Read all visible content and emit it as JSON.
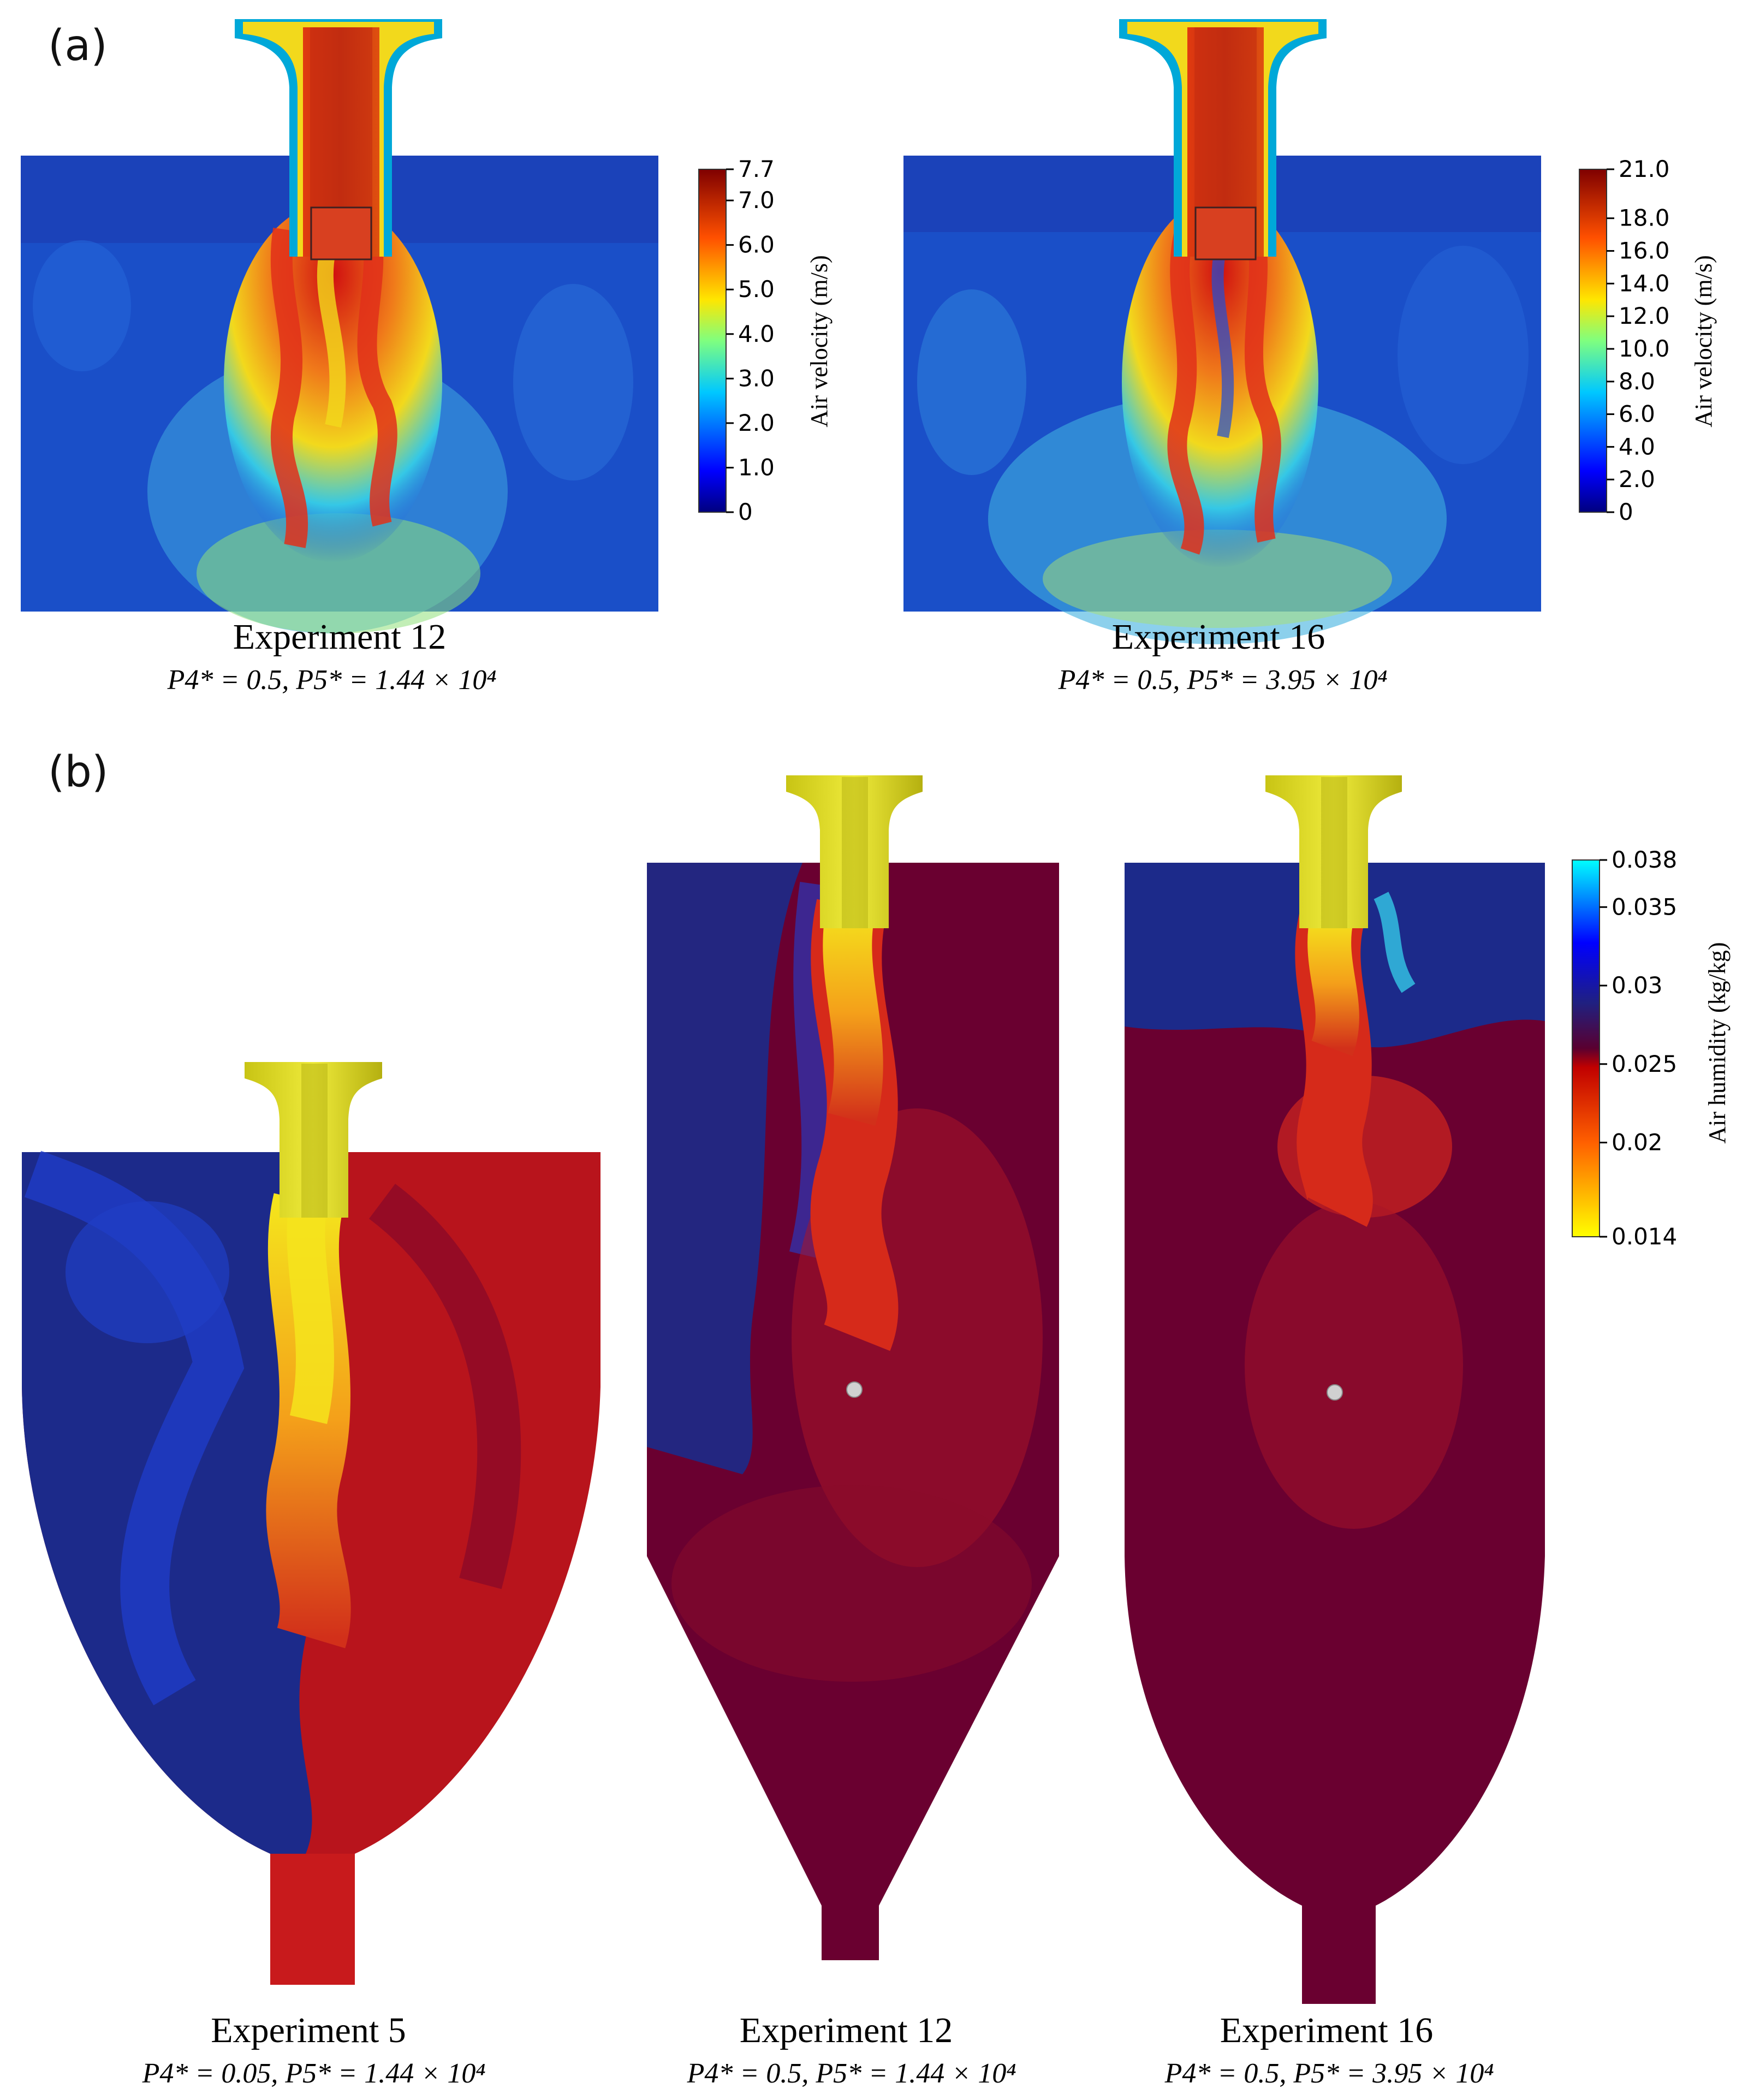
{
  "figure": {
    "panel_a": {
      "label": "(a)",
      "colorbar_title": "Air velocity (m/s)",
      "plots": [
        {
          "title": "Experiment 12",
          "params": "P4* = 0.5,    P5* = 1.44 × 10⁴",
          "ticks": [
            "7.7",
            "7.0",
            "6.0",
            "5.0",
            "4.0",
            "3.0",
            "2.0",
            "1.0",
            "0"
          ],
          "tick_values": [
            7.7,
            7.0,
            6.0,
            5.0,
            4.0,
            3.0,
            2.0,
            1.0,
            0
          ],
          "range": [
            0,
            7.7
          ]
        },
        {
          "title": "Experiment 16",
          "params": "P4* = 0.5,    P5* = 3.95 × 10⁴",
          "ticks": [
            "21.0",
            "18.0",
            "16.0",
            "14.0",
            "12.0",
            "10.0",
            "8.0",
            "6.0",
            "4.0",
            "2.0",
            "0"
          ],
          "tick_values": [
            21.0,
            18.0,
            16.0,
            14.0,
            12.0,
            10.0,
            8.0,
            6.0,
            4.0,
            2.0,
            0
          ],
          "range": [
            0,
            21.0
          ]
        }
      ]
    },
    "panel_b": {
      "label": "(b)",
      "colorbar_title": "Air humidity (kg/kg)",
      "ticks": [
        "0.038",
        "0.035",
        "0.03",
        "0.025",
        "0.02",
        "0.014"
      ],
      "tick_values": [
        0.038,
        0.035,
        0.03,
        0.025,
        0.02,
        0.014
      ],
      "range": [
        0.014,
        0.038
      ],
      "plots": [
        {
          "title": "Experiment 5",
          "params": "P4* = 0.05,    P5* = 1.44 × 10⁴"
        },
        {
          "title": "Experiment 12",
          "params": "P4* = 0.5,    P5* = 1.44 × 10⁴"
        },
        {
          "title": "Experiment 16",
          "params": "P4* = 0.5,    P5* = 3.95 × 10⁴"
        }
      ]
    },
    "colors": {
      "jet_dark_blue": "#0a1e8c",
      "jet_blue": "#1f4fd6",
      "jet_cyan": "#35c8e6",
      "jet_yellow": "#f2d91c",
      "jet_orange": "#f07a1a",
      "jet_red": "#c21010",
      "humidity_dark_red": "#6a0030",
      "humidity_red": "#b8141c",
      "humidity_navy": "#1c2a8a",
      "humidity_yellow": "#e8e01a",
      "nozzle_yellow": "#d6d21e"
    }
  }
}
